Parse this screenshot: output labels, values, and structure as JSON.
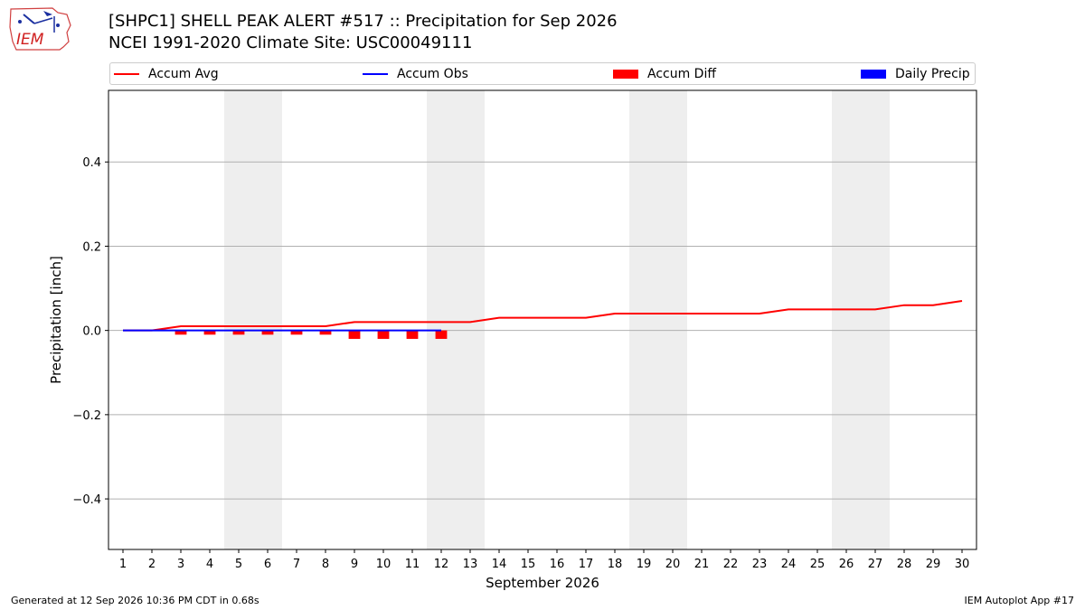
{
  "header": {
    "title_line1": "[SHPC1] SHELL PEAK ALERT #517 :: Precipitation for Sep 2026",
    "title_line2": "NCEI 1991-2020 Climate Site: USC00049111",
    "logo_text": "IEM"
  },
  "footer": {
    "generated": "Generated at 12 Sep 2026 10:36 PM CDT in 0.68s",
    "app": "IEM Autoplot App #17"
  },
  "colors": {
    "accum_avg": "#ff0000",
    "accum_obs": "#0000ff",
    "accum_diff": "#ff0000",
    "daily_precip": "#0000ff",
    "weekend_shade": "#eeeeee",
    "grid": "#b0b0b0"
  },
  "chart_data": {
    "type": "line",
    "xlabel": "September 2026",
    "ylabel": "Precipitation [inch]",
    "xlim": [
      0.5,
      30.5
    ],
    "ylim": [
      -0.52,
      0.57
    ],
    "yticks": [
      -0.4,
      -0.2,
      0.0,
      0.2,
      0.4
    ],
    "ytick_labels": [
      "−0.4",
      "−0.2",
      "0.0",
      "0.2",
      "0.4"
    ],
    "x_ticks": [
      1,
      2,
      3,
      4,
      5,
      6,
      7,
      8,
      9,
      10,
      11,
      12,
      13,
      14,
      15,
      16,
      17,
      18,
      19,
      20,
      21,
      22,
      23,
      24,
      25,
      26,
      27,
      28,
      29,
      30
    ],
    "grid": "horizontal",
    "legend_position": "top",
    "legend": [
      {
        "label": "Accum Avg",
        "kind": "line",
        "color": "#ff0000"
      },
      {
        "label": "Accum Obs",
        "kind": "line",
        "color": "#0000ff"
      },
      {
        "label": "Accum Diff",
        "kind": "box",
        "color": "#ff0000"
      },
      {
        "label": "Daily Precip",
        "kind": "box",
        "color": "#0000ff"
      }
    ],
    "weekend_spans": [
      [
        5,
        6
      ],
      [
        12,
        13
      ],
      [
        19,
        20
      ],
      [
        26,
        27
      ]
    ],
    "accum_avg": {
      "x": [
        1,
        2,
        3,
        4,
        5,
        6,
        7,
        8,
        9,
        10,
        11,
        12,
        13,
        14,
        15,
        16,
        17,
        18,
        19,
        20,
        21,
        22,
        23,
        24,
        25,
        26,
        27,
        28,
        29,
        30
      ],
      "values": [
        0.0,
        0.0,
        0.01,
        0.01,
        0.01,
        0.01,
        0.01,
        0.01,
        0.02,
        0.02,
        0.02,
        0.02,
        0.02,
        0.03,
        0.03,
        0.03,
        0.03,
        0.04,
        0.04,
        0.04,
        0.04,
        0.04,
        0.04,
        0.05,
        0.05,
        0.05,
        0.05,
        0.06,
        0.06,
        0.07
      ]
    },
    "accum_obs": {
      "x": [
        1,
        2,
        3,
        4,
        5,
        6,
        7,
        8,
        9,
        10,
        11,
        12
      ],
      "values": [
        0,
        0,
        0,
        0,
        0,
        0,
        0,
        0,
        0,
        0,
        0,
        0
      ]
    },
    "accum_diff": {
      "x": [
        3,
        4,
        5,
        6,
        7,
        8,
        9,
        10,
        11,
        12
      ],
      "values": [
        -0.01,
        -0.01,
        -0.01,
        -0.01,
        -0.01,
        -0.01,
        -0.02,
        -0.02,
        -0.02,
        -0.02
      ]
    },
    "daily_precip": {
      "x": [
        1,
        2,
        3,
        4,
        5,
        6,
        7,
        8,
        9,
        10,
        11,
        12
      ],
      "values": [
        0,
        0,
        0,
        0,
        0,
        0,
        0,
        0,
        0,
        0,
        0,
        0
      ]
    }
  }
}
